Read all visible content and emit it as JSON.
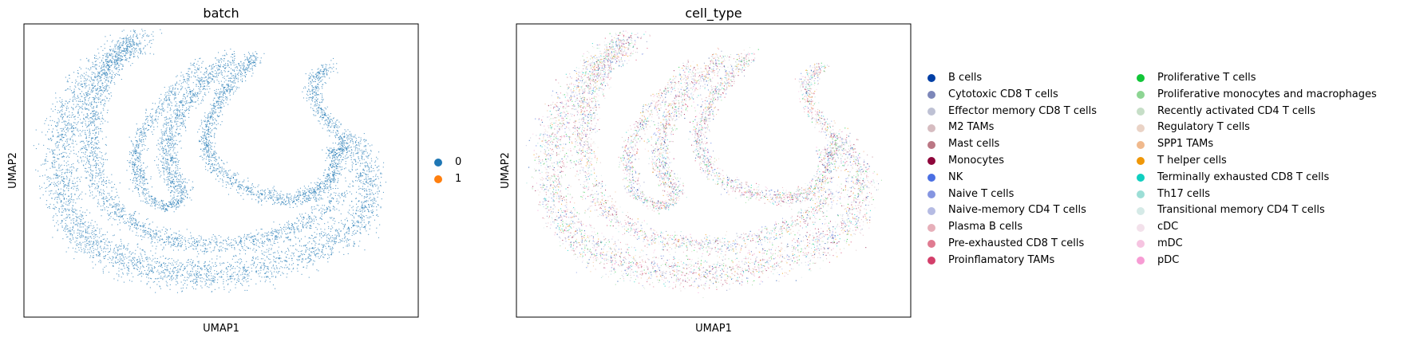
{
  "chart_data": [
    {
      "type": "scatter",
      "title": "batch",
      "xlabel": "UMAP1",
      "ylabel": "UMAP2",
      "grid": false,
      "legend_position": "right",
      "series": [
        {
          "name": "0",
          "color": "#1f77b4"
        },
        {
          "name": "1",
          "color": "#ff7f0e"
        }
      ]
    },
    {
      "type": "scatter",
      "title": "cell_type",
      "xlabel": "UMAP1",
      "ylabel": "UMAP2",
      "grid": false,
      "legend_position": "right",
      "series": [
        {
          "name": "B cells",
          "color": "#023fa5"
        },
        {
          "name": "Cytotoxic CD8 T cells",
          "color": "#7d87b9"
        },
        {
          "name": "Effector memory CD8 T cells",
          "color": "#bec1d4"
        },
        {
          "name": "M2 TAMs",
          "color": "#d6bcc0"
        },
        {
          "name": "Mast cells",
          "color": "#bb7784"
        },
        {
          "name": "Monocytes",
          "color": "#8e063b"
        },
        {
          "name": "NK",
          "color": "#4a6fe3"
        },
        {
          "name": "Naive T cells",
          "color": "#8595e1"
        },
        {
          "name": "Naive-memory CD4 T cells",
          "color": "#b5bbe3"
        },
        {
          "name": "Plasma B cells",
          "color": "#e6afb9"
        },
        {
          "name": "Pre-exhausted CD8 T cells",
          "color": "#e07b91"
        },
        {
          "name": "Proinflamatory TAMs",
          "color": "#d33f6a"
        },
        {
          "name": "Proliferative T cells",
          "color": "#11c638"
        },
        {
          "name": "Proliferative monocytes and macrophages",
          "color": "#8dd593"
        },
        {
          "name": "Recently activated CD4 T cells",
          "color": "#c6dec7"
        },
        {
          "name": "Regulatory T cells",
          "color": "#ead3c6"
        },
        {
          "name": "SPP1 TAMs",
          "color": "#f0b98d"
        },
        {
          "name": "T helper cells",
          "color": "#ef9708"
        },
        {
          "name": "Terminally exhausted CD8 T cells",
          "color": "#0fcfc0"
        },
        {
          "name": "Th17 cells",
          "color": "#9cded6"
        },
        {
          "name": "Transitional memory CD4 T cells",
          "color": "#d5eae7"
        },
        {
          "name": "cDC",
          "color": "#f3e1eb"
        },
        {
          "name": "mDC",
          "color": "#f6c4e1"
        },
        {
          "name": "pDC",
          "color": "#f79cd4"
        }
      ]
    }
  ]
}
